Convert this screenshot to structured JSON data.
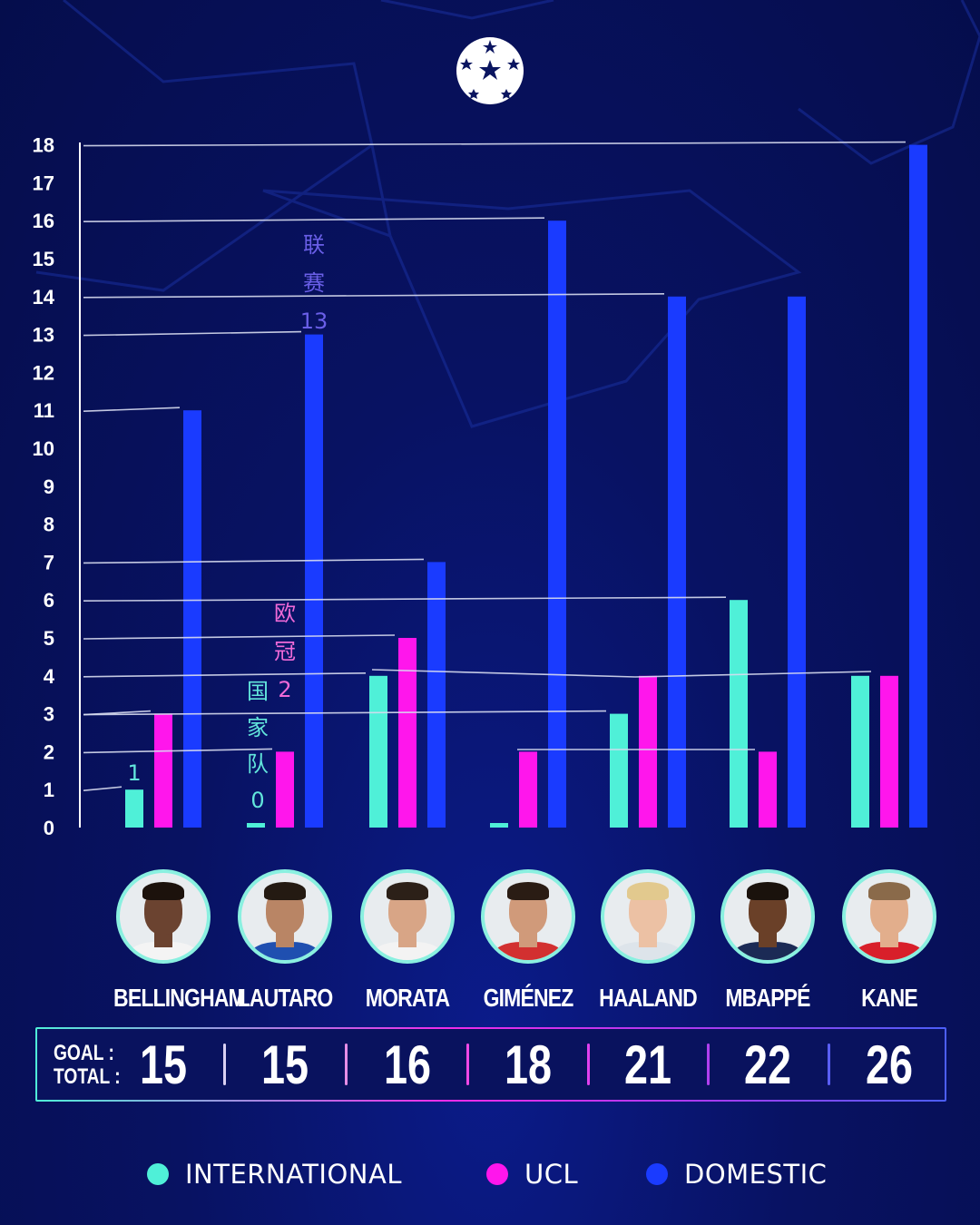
{
  "chart_data": {
    "type": "bar",
    "categories": [
      "BELLINGHAM",
      "LAUTARO",
      "MORATA",
      "GIMÉNEZ",
      "HAALAND",
      "MBAPPÉ",
      "KANE"
    ],
    "series": [
      {
        "name": "INTERNATIONAL",
        "color": "#4ff0d8",
        "values": [
          1,
          0,
          4,
          0,
          3,
          6,
          4
        ]
      },
      {
        "name": "UCL",
        "color": "#ff16ec",
        "values": [
          3,
          2,
          5,
          2,
          4,
          2,
          4
        ]
      },
      {
        "name": "DOMESTIC",
        "color": "#1a3bff",
        "values": [
          11,
          13,
          7,
          16,
          14,
          14,
          18
        ]
      }
    ],
    "ylim": [
      0,
      18
    ],
    "yticks": [
      0,
      1,
      2,
      3,
      4,
      5,
      6,
      7,
      8,
      9,
      10,
      11,
      12,
      13,
      14,
      15,
      16,
      17,
      18
    ],
    "annotations": [
      {
        "lines": [
          "联",
          "赛",
          "13"
        ],
        "series": "DOMESTIC",
        "color": "#6a5fe8"
      },
      {
        "lines": [
          "欧",
          "冠",
          "2"
        ],
        "series": "UCL",
        "color": "#f06ad8"
      },
      {
        "lines": [
          "国",
          "家",
          "队",
          "0"
        ],
        "series": "INTERNATIONAL",
        "color": "#62e6dc"
      },
      {
        "lines": [
          "1"
        ],
        "series": "INTERNATIONAL",
        "color": "#62e6dc"
      }
    ],
    "grid": false,
    "legend": "bottom"
  },
  "players": [
    {
      "name": "BELLINGHAM",
      "skin": "#6b4330",
      "hair": "#1c120c",
      "shirt": "#f4f4f4"
    },
    {
      "name": "LAUTARO",
      "skin": "#b98565",
      "hair": "#241a12",
      "shirt": "#1f4fb0"
    },
    {
      "name": "MORATA",
      "skin": "#d8a586",
      "hair": "#2c2018",
      "shirt": "#f3f3f3"
    },
    {
      "name": "GIMÉNEZ",
      "skin": "#d09a7a",
      "hair": "#2a1c14",
      "shirt": "#d23030"
    },
    {
      "name": "HAALAND",
      "skin": "#ecc1a4",
      "hair": "#e2c98e",
      "shirt": "#dde4ea"
    },
    {
      "name": "MBAPPÉ",
      "skin": "#6a4028",
      "hair": "#1a120c",
      "shirt": "#1b2a55"
    },
    {
      "name": "KANE",
      "skin": "#e2ae8c",
      "hair": "#8a6a4a",
      "shirt": "#d81f2a"
    }
  ],
  "totals": {
    "label_line1": "GOAL :",
    "label_line2": "TOTAL :",
    "values": [
      "15",
      "15",
      "16",
      "18",
      "21",
      "22",
      "26"
    ],
    "separator_colors": [
      "#d9d0f2",
      "#e68ee6",
      "#f048e6",
      "#e040ee",
      "#b040ee",
      "#5a5ef4"
    ]
  },
  "legend": [
    {
      "label": "INTERNATIONAL",
      "color": "#4ff0d8"
    },
    {
      "label": "UCL",
      "color": "#ff16ec"
    },
    {
      "label": "DOMESTIC",
      "color": "#1a3bff"
    }
  ],
  "logo": {
    "icon": "champions-league-starball-icon"
  }
}
